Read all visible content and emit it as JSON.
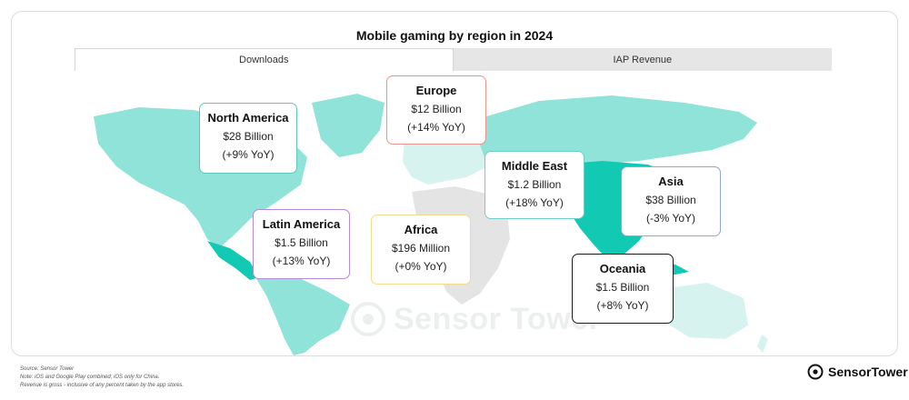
{
  "chart_data": {
    "type": "choropleth-map",
    "title": "Mobile gaming by region in 2024",
    "tabs": [
      {
        "label": "Downloads",
        "active": true
      },
      {
        "label": "IAP Revenue",
        "active": false
      }
    ],
    "regions": [
      {
        "name": "North America",
        "value": "$28 Billion",
        "change": "(+9% YoY)",
        "border_color": "#5fc8b8"
      },
      {
        "name": "Europe",
        "value": "$12 Billion",
        "change": "(+14% YoY)",
        "border_color": "#e8958a"
      },
      {
        "name": "Middle East",
        "value": "$1.2 Billion",
        "change": "(+18% YoY)",
        "border_color": "#6fcfc6"
      },
      {
        "name": "Asia",
        "value": "$38 Billion",
        "change": "(-3% YoY)",
        "border_color": "#8fa6d8"
      },
      {
        "name": "Latin America",
        "value": "$1.5 Billion",
        "change": "(+13% YoY)",
        "border_color": "#b58ad6"
      },
      {
        "name": "Africa",
        "value": "$196 Million",
        "change": "(+0% YoY)",
        "border_color": "#f0dc8a"
      },
      {
        "name": "Oceania",
        "value": "$1.5 Billion",
        "change": "(+8% YoY)",
        "border_color": "#1a1a1a"
      }
    ],
    "colors": {
      "dark_teal": "#12c9b4",
      "mid_teal": "#8fe3d8",
      "light_teal": "#d7f3ef",
      "grey": "#e4e4e4"
    }
  },
  "watermark": "Sensor Tower",
  "footer": {
    "notes": [
      "Source: Sensor Tower",
      "Note: iOS and Google Play combined; iOS only for China.",
      "Revenue is gross - inclusive of any percent taken by the app stores."
    ],
    "brand": "SensorTower"
  }
}
